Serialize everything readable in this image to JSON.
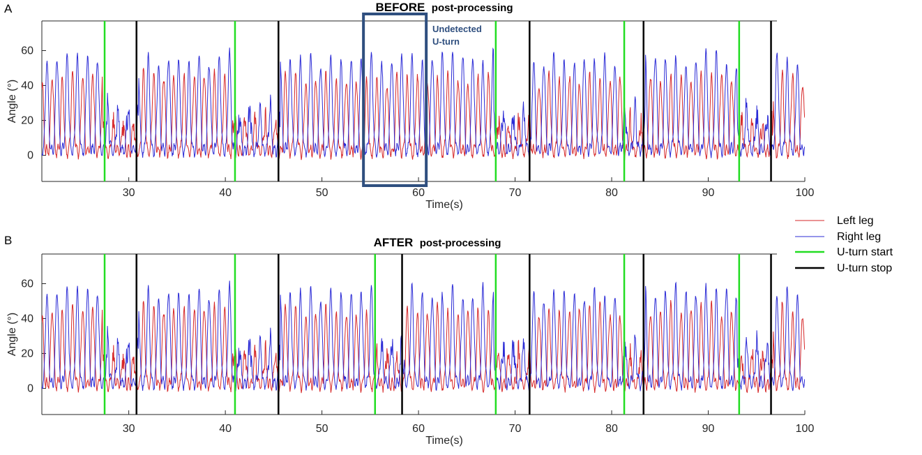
{
  "figure": {
    "panels": [
      {
        "letter": "A",
        "title_bold": "BEFORE",
        "title_rest": "post-processing",
        "annotation_line1": "Undetected",
        "annotation_line2": "U-turn"
      },
      {
        "letter": "B",
        "title_bold": "AFTER",
        "title_rest": "post-processing"
      }
    ],
    "legend": [
      {
        "label": "Left leg",
        "color": "#d62728"
      },
      {
        "label": "Right leg",
        "color": "#2b2bd6"
      },
      {
        "label": "U-turn start",
        "color": "#22dd22"
      },
      {
        "label": "U-turn stop",
        "color": "#000000"
      }
    ]
  },
  "chart_data": [
    {
      "type": "line",
      "xlabel": "Time(s)",
      "ylabel": "Angle (°)",
      "xlim": [
        21,
        100
      ],
      "ylim": [
        -15,
        77
      ],
      "xticks": [
        30,
        40,
        50,
        60,
        70,
        80,
        90,
        100
      ],
      "yticks": [
        0,
        20,
        40,
        60
      ],
      "series": [
        {
          "name": "Left leg",
          "color": "#d62728",
          "peak_value": 47,
          "trough_value": 2,
          "period_s": 1.05
        },
        {
          "name": "Right leg",
          "color": "#2b2bd6",
          "peak_value": 58,
          "trough_value": 3,
          "period_s": 1.05
        }
      ],
      "uturn_start": [
        27.5,
        41.0,
        68.0,
        81.3,
        93.2
      ],
      "uturn_stop": [
        30.8,
        45.5,
        71.5,
        83.3,
        96.5
      ],
      "highlight_region": {
        "x0": 54.3,
        "x1": 60.8
      }
    },
    {
      "type": "line",
      "xlabel": "Time(s)",
      "ylabel": "Angle (°)",
      "xlim": [
        21,
        100
      ],
      "ylim": [
        -15,
        77
      ],
      "xticks": [
        30,
        40,
        50,
        60,
        70,
        80,
        90,
        100
      ],
      "yticks": [
        0,
        20,
        40,
        60
      ],
      "series": [
        {
          "name": "Left leg",
          "color": "#d62728",
          "peak_value": 47,
          "trough_value": 2,
          "period_s": 1.05
        },
        {
          "name": "Right leg",
          "color": "#2b2bd6",
          "peak_value": 58,
          "trough_value": 3,
          "period_s": 1.05
        }
      ],
      "uturn_start": [
        27.5,
        41.0,
        55.5,
        68.0,
        81.3,
        93.2
      ],
      "uturn_stop": [
        30.8,
        45.5,
        58.3,
        71.5,
        83.3,
        96.5
      ]
    }
  ]
}
